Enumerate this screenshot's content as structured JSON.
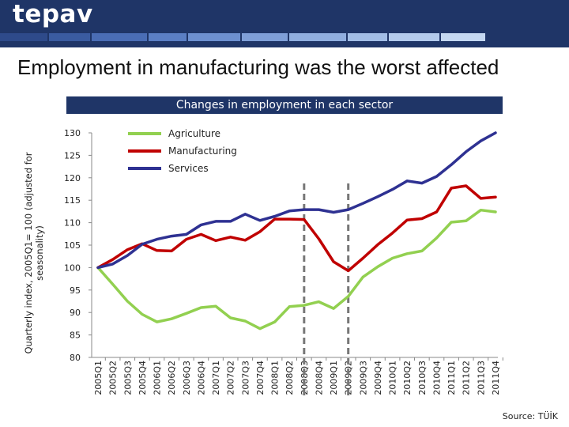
{
  "header": {
    "brand": "tepav",
    "strip_colors": [
      "#2e4a8a",
      "#3a5ba0",
      "#4a6db5",
      "#5b7fc4",
      "#6d90d0",
      "#7f9fd8",
      "#90aedf",
      "#a2bde6",
      "#b3caec",
      "#c4d7f1"
    ]
  },
  "slide_title": "Employment in manufacturing was the worst affected",
  "source": "Source: TÜİK",
  "colors": {
    "agriculture": "#92d050",
    "manufacturing": "#c00000",
    "services": "#2e3192"
  },
  "chart_data": {
    "type": "line",
    "title": "Changes in employment in each sector",
    "ylabel": "Quarterly index, 2005Q1= 100 (adjusted for seasonality)",
    "xlabel": "",
    "ylim": [
      80,
      130
    ],
    "yticks": [
      "80",
      "85",
      "90",
      "95",
      "100",
      "105",
      "110",
      "115",
      "120",
      "125",
      "130"
    ],
    "categories": [
      "2005Q1",
      "2005Q2",
      "2005Q3",
      "2005Q4",
      "2006Q1",
      "2006Q2",
      "2006Q3",
      "2006Q4",
      "2007Q1",
      "2007Q2",
      "2007Q3",
      "2007Q4",
      "2008Q1",
      "2008Q2",
      "2008Q3",
      "2008Q4",
      "2009Q1",
      "2009Q2",
      "2009Q3",
      "2009Q4",
      "2010Q1",
      "2010Q2",
      "2010Q3",
      "2010Q4",
      "2011Q1",
      "2011Q2",
      "2011Q3",
      "2011Q4"
    ],
    "markers": [
      "2008Q3",
      "2009Q2"
    ],
    "legend_position": "top-left",
    "series": [
      {
        "name": "Agriculture",
        "color": "#92d050",
        "values": [
          100,
          96.3,
          92.5,
          89.6,
          87.9,
          88.6,
          89.8,
          91.1,
          91.4,
          88.8,
          88.1,
          86.4,
          87.9,
          91.3,
          91.6,
          92.4,
          90.9,
          93.6,
          97.9,
          100.2,
          102.1,
          103.1,
          103.7,
          106.6,
          110.1,
          110.4,
          112.8,
          112.4
        ]
      },
      {
        "name": "Manufacturing",
        "color": "#c00000",
        "values": [
          100,
          101.8,
          104,
          105.3,
          103.8,
          103.7,
          106.3,
          107.4,
          106,
          106.8,
          106.1,
          108,
          110.8,
          110.8,
          110.7,
          106.4,
          101.3,
          99.3,
          102.1,
          105.1,
          107.7,
          110.6,
          110.9,
          112.4,
          117.7,
          118.2,
          115.4,
          115.7
        ]
      },
      {
        "name": "Services",
        "color": "#2e3192",
        "values": [
          100,
          100.8,
          102.7,
          105.2,
          106.3,
          107,
          107.4,
          109.5,
          110.3,
          110.3,
          111.9,
          110.5,
          111.4,
          112.6,
          112.9,
          112.9,
          112.3,
          112.9,
          114.3,
          115.8,
          117.4,
          119.3,
          118.8,
          120.3,
          122.9,
          125.8,
          128.2,
          130
        ]
      }
    ]
  }
}
